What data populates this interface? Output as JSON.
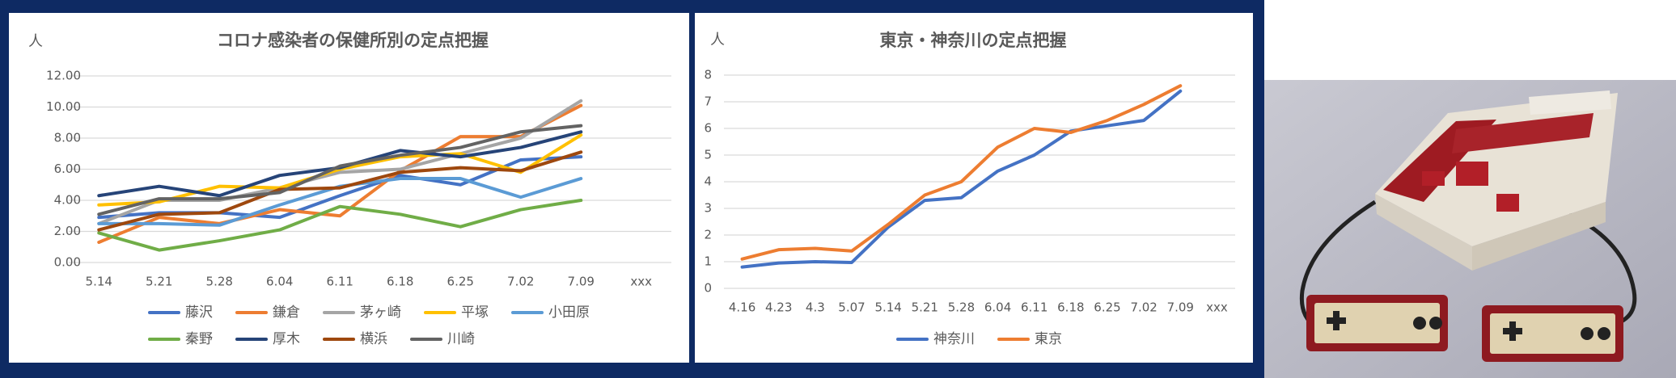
{
  "chart_data": [
    {
      "type": "line",
      "title": "コロナ感染者の保健所別の定点把握",
      "y_label": "人",
      "categories": [
        "5.14",
        "5.21",
        "5.28",
        "6.04",
        "6.11",
        "6.18",
        "6.25",
        "7.02",
        "7.09",
        "xxx"
      ],
      "ylim": [
        0,
        12
      ],
      "yticks": [
        {
          "value": 0,
          "label": "0.00"
        },
        {
          "value": 2,
          "label": "2.00"
        },
        {
          "value": 4,
          "label": "4.00"
        },
        {
          "value": 6,
          "label": "6.00"
        },
        {
          "value": 8,
          "label": "8.00"
        },
        {
          "value": 10,
          "label": "10.00"
        },
        {
          "value": 12,
          "label": "12.00"
        }
      ],
      "grid": true,
      "legend": "bottom",
      "series": [
        {
          "name": "藤沢",
          "color": "#4472c4",
          "values": [
            2.9,
            3.2,
            3.2,
            2.9,
            4.3,
            5.6,
            5.0,
            6.6,
            6.8,
            null
          ]
        },
        {
          "name": "鎌倉",
          "color": "#ed7d31",
          "values": [
            1.3,
            2.9,
            2.5,
            3.4,
            3.0,
            5.9,
            8.1,
            8.1,
            10.1,
            null
          ]
        },
        {
          "name": "茅ヶ崎",
          "color": "#a5a5a5",
          "values": [
            2.5,
            4.0,
            4.0,
            4.8,
            5.8,
            6.0,
            7.0,
            8.0,
            10.4,
            null
          ]
        },
        {
          "name": "平塚",
          "color": "#ffc000",
          "values": [
            3.7,
            3.9,
            4.9,
            4.8,
            6.0,
            6.8,
            7.0,
            5.8,
            8.2,
            null
          ]
        },
        {
          "name": "小田原",
          "color": "#5b9bd5",
          "values": [
            2.5,
            2.5,
            2.4,
            3.7,
            4.9,
            5.4,
            5.4,
            4.2,
            5.4,
            null
          ]
        },
        {
          "name": "秦野",
          "color": "#70ad47",
          "values": [
            1.9,
            0.8,
            1.4,
            2.1,
            3.6,
            3.1,
            2.3,
            3.4,
            4.0,
            null
          ]
        },
        {
          "name": "厚木",
          "color": "#264478",
          "values": [
            4.3,
            4.9,
            4.3,
            5.6,
            6.1,
            7.2,
            6.8,
            7.4,
            8.4,
            null
          ]
        },
        {
          "name": "横浜",
          "color": "#9e480e",
          "values": [
            2.1,
            3.1,
            3.2,
            4.7,
            4.8,
            5.8,
            6.1,
            5.9,
            7.1,
            null
          ]
        },
        {
          "name": "川崎",
          "color": "#636363",
          "values": [
            3.1,
            4.1,
            4.1,
            4.5,
            6.2,
            6.9,
            7.4,
            8.4,
            8.8,
            null
          ]
        }
      ]
    },
    {
      "type": "line",
      "title": "東京・神奈川の定点把握",
      "y_label": "人",
      "categories": [
        "4.16",
        "4.23",
        "4.3",
        "5.07",
        "5.14",
        "5.21",
        "5.28",
        "6.04",
        "6.11",
        "6.18",
        "6.25",
        "7.02",
        "7.09",
        "xxx"
      ],
      "ylim": [
        0,
        8
      ],
      "yticks": [
        0,
        1,
        2,
        3,
        4,
        5,
        6,
        7,
        8
      ],
      "grid": true,
      "legend": "bottom",
      "series": [
        {
          "name": "神奈川",
          "color": "#4472c4",
          "values": [
            0.8,
            0.95,
            1.0,
            0.97,
            2.3,
            3.3,
            3.4,
            4.4,
            5.0,
            5.9,
            6.1,
            6.3,
            7.4,
            null
          ]
        },
        {
          "name": "東京",
          "color": "#ed7d31",
          "values": [
            1.1,
            1.45,
            1.5,
            1.4,
            2.4,
            3.5,
            4.0,
            5.3,
            6.0,
            5.85,
            6.3,
            6.9,
            7.6,
            null
          ]
        }
      ]
    }
  ]
}
